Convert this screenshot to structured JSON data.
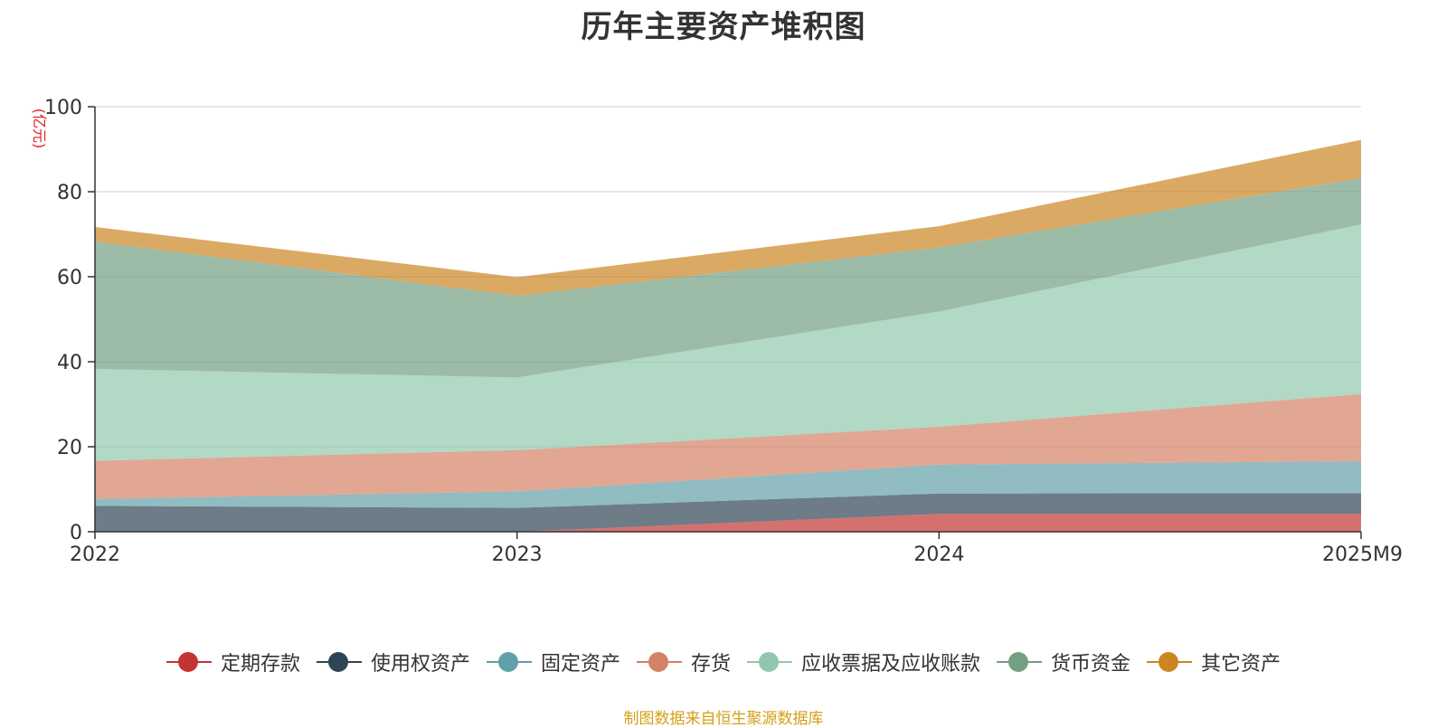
{
  "chart_data": {
    "type": "area",
    "stacked": true,
    "title": "历年主要资产堆积图",
    "unit_label": "(亿元)",
    "categories": [
      "2022",
      "2023",
      "2024",
      "2025M9"
    ],
    "ylim": [
      0,
      100
    ],
    "yticks": [
      0,
      20,
      40,
      60,
      80,
      100
    ],
    "grid": true,
    "legend_position": "bottom",
    "series": [
      {
        "name": "定期存款",
        "color": "#c23531",
        "values": [
          0,
          0,
          4.2,
          4.2
        ]
      },
      {
        "name": "使用权资产",
        "color": "#2f4554",
        "values": [
          6.1,
          5.6,
          4.8,
          4.9
        ]
      },
      {
        "name": "固定资产",
        "color": "#61a0a8",
        "values": [
          1.6,
          3.9,
          6.8,
          7.5
        ]
      },
      {
        "name": "存货",
        "color": "#d48265",
        "values": [
          9.0,
          9.7,
          8.9,
          15.8
        ]
      },
      {
        "name": "应收票据及应收账款",
        "color": "#91c7ae",
        "values": [
          21.6,
          17.1,
          27.1,
          39.9
        ]
      },
      {
        "name": "货币资金",
        "color": "#749f83",
        "values": [
          30.0,
          19.2,
          15.1,
          10.9
        ]
      },
      {
        "name": "其它资产",
        "color": "#ca8622",
        "values": [
          3.4,
          4.4,
          5.0,
          9.0
        ]
      }
    ]
  },
  "footer": {
    "source": "制图数据来自恒生聚源数据库"
  }
}
